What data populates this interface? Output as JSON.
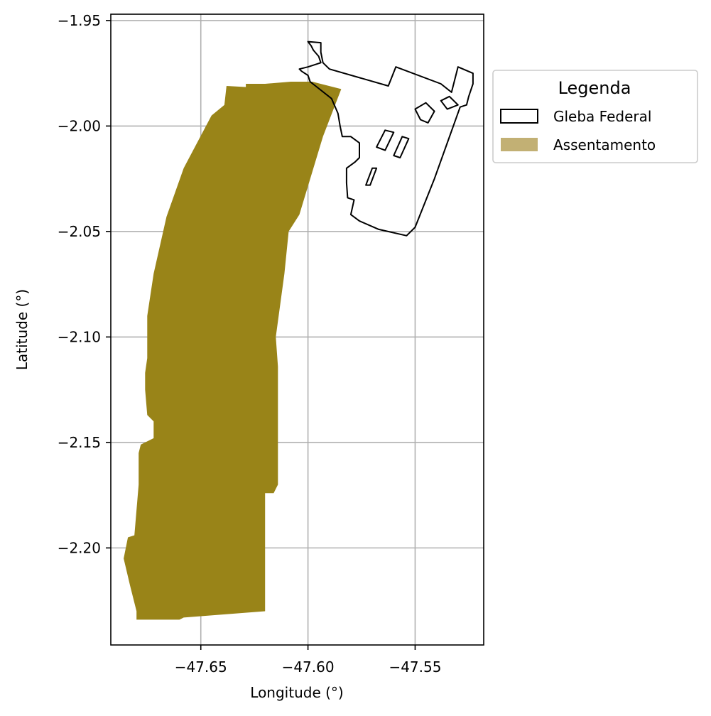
{
  "chart_data": {
    "type": "map",
    "xlabel": "Longitude (°)",
    "ylabel": "Latitude (°)",
    "xlim": [
      -47.692,
      -47.518
    ],
    "ylim": [
      -2.246,
      -1.947
    ],
    "grid": true,
    "x_ticks": [
      -47.65,
      -47.6,
      -47.55
    ],
    "x_tick_labels": [
      "−47.65",
      "−47.60",
      "−47.55"
    ],
    "y_ticks": [
      -1.95,
      -2.0,
      -2.05,
      -2.1,
      -2.15,
      -2.2
    ],
    "y_tick_labels": [
      "−1.95",
      "−2.00",
      "−2.05",
      "−2.10",
      "−2.15",
      "−2.20"
    ],
    "legend": {
      "title": "Legenda",
      "placement": "outside-upper-right",
      "entries": [
        {
          "label": "Gleba Federal",
          "style": "outline",
          "edge_color": "#000000",
          "fill_color": "none"
        },
        {
          "label": "Assentamento",
          "style": "fill",
          "fill_color": "#c2b074"
        }
      ]
    },
    "series": [
      {
        "key": "assentamento",
        "color": "#998418",
        "polygons": [
          [
            [
              -47.62,
              -1.98
            ],
            [
              -47.608,
              -1.979
            ],
            [
              -47.598,
              -1.979
            ],
            [
              -47.5845,
              -1.9825
            ],
            [
              -47.593,
              -2.005
            ],
            [
              -47.604,
              -2.042
            ],
            [
              -47.609,
              -2.05
            ],
            [
              -47.611,
              -2.07
            ],
            [
              -47.615,
              -2.1
            ],
            [
              -47.614,
              -2.114
            ],
            [
              -47.614,
              -2.148
            ],
            [
              -47.614,
              -2.17
            ],
            [
              -47.616,
              -2.174
            ],
            [
              -47.62,
              -2.174
            ],
            [
              -47.62,
              -2.195
            ],
            [
              -47.62,
              -2.203
            ],
            [
              -47.62,
              -2.23
            ],
            [
              -47.658,
              -2.233
            ],
            [
              -47.66,
              -2.234
            ],
            [
              -47.68,
              -2.234
            ],
            [
              -47.68,
              -2.23
            ],
            [
              -47.683,
              -2.218
            ],
            [
              -47.686,
              -2.205
            ],
            [
              -47.684,
              -2.195
            ],
            [
              -47.681,
              -2.194
            ],
            [
              -47.679,
              -2.17
            ],
            [
              -47.679,
              -2.155
            ],
            [
              -47.678,
              -2.151
            ],
            [
              -47.672,
              -2.148
            ],
            [
              -47.672,
              -2.14
            ],
            [
              -47.675,
              -2.137
            ],
            [
              -47.676,
              -2.125
            ],
            [
              -47.676,
              -2.117
            ],
            [
              -47.675,
              -2.11
            ],
            [
              -47.675,
              -2.09
            ],
            [
              -47.672,
              -2.07
            ],
            [
              -47.666,
              -2.043
            ],
            [
              -47.658,
              -2.02
            ],
            [
              -47.645,
              -1.995
            ],
            [
              -47.639,
              -1.99
            ],
            [
              -47.638,
              -1.981
            ],
            [
              -47.629,
              -1.9815
            ],
            [
              -47.629,
              -1.98
            ]
          ]
        ]
      },
      {
        "key": "gleba-federal",
        "color": "#000000",
        "polygons": [
          [
            [
              -47.6,
              -1.96
            ],
            [
              -47.594,
              -1.9605
            ],
            [
              -47.594,
              -1.965
            ],
            [
              -47.593,
              -1.97
            ],
            [
              -47.59,
              -1.973
            ],
            [
              -47.5625,
              -1.981
            ],
            [
              -47.559,
              -1.972
            ],
            [
              -47.538,
              -1.98
            ],
            [
              -47.533,
              -1.984
            ],
            [
              -47.53,
              -1.972
            ],
            [
              -47.523,
              -1.975
            ],
            [
              -47.523,
              -1.98
            ],
            [
              -47.525,
              -1.986
            ],
            [
              -47.526,
              -1.99
            ],
            [
              -47.529,
              -1.991
            ],
            [
              -47.541,
              -2.025
            ],
            [
              -47.55,
              -2.048
            ],
            [
              -47.554,
              -2.052
            ],
            [
              -47.567,
              -2.049
            ],
            [
              -47.576,
              -2.045
            ],
            [
              -47.58,
              -2.042
            ],
            [
              -47.5785,
              -2.035
            ],
            [
              -47.5815,
              -2.034
            ],
            [
              -47.582,
              -2.027
            ],
            [
              -47.582,
              -2.02
            ],
            [
              -47.578,
              -2.017
            ],
            [
              -47.576,
              -2.015
            ],
            [
              -47.576,
              -2.008
            ],
            [
              -47.58,
              -2.005
            ],
            [
              -47.584,
              -2.005
            ],
            [
              -47.585,
              -2.0
            ],
            [
              -47.586,
              -1.994
            ],
            [
              -47.589,
              -1.987
            ],
            [
              -47.594,
              -1.983
            ],
            [
              -47.599,
              -1.979
            ],
            [
              -47.6,
              -1.976
            ],
            [
              -47.603,
              -1.974
            ],
            [
              -47.604,
              -1.973
            ],
            [
              -47.6,
              -1.972
            ],
            [
              -47.594,
              -1.97
            ],
            [
              -47.595,
              -1.967
            ],
            [
              -47.5975,
              -1.964
            ],
            [
              -47.5985,
              -1.962
            ]
          ],
          [
            [
              -47.55,
              -1.992
            ],
            [
              -47.545,
              -1.989
            ],
            [
              -47.541,
              -1.993
            ],
            [
              -47.544,
              -1.9985
            ],
            [
              -47.5475,
              -1.997
            ]
          ],
          [
            [
              -47.564,
              -2.002
            ],
            [
              -47.56,
              -2.003
            ],
            [
              -47.564,
              -2.0115
            ],
            [
              -47.568,
              -2.01
            ]
          ],
          [
            [
              -47.556,
              -2.005
            ],
            [
              -47.553,
              -2.006
            ],
            [
              -47.557,
              -2.015
            ],
            [
              -47.56,
              -2.014
            ]
          ],
          [
            [
              -47.57,
              -2.02
            ],
            [
              -47.568,
              -2.02
            ],
            [
              -47.571,
              -2.028
            ],
            [
              -47.573,
              -2.028
            ]
          ],
          [
            [
              -47.538,
              -1.988
            ],
            [
              -47.534,
              -1.986
            ],
            [
              -47.53,
              -1.99
            ],
            [
              -47.535,
              -1.992
            ]
          ]
        ]
      }
    ]
  }
}
